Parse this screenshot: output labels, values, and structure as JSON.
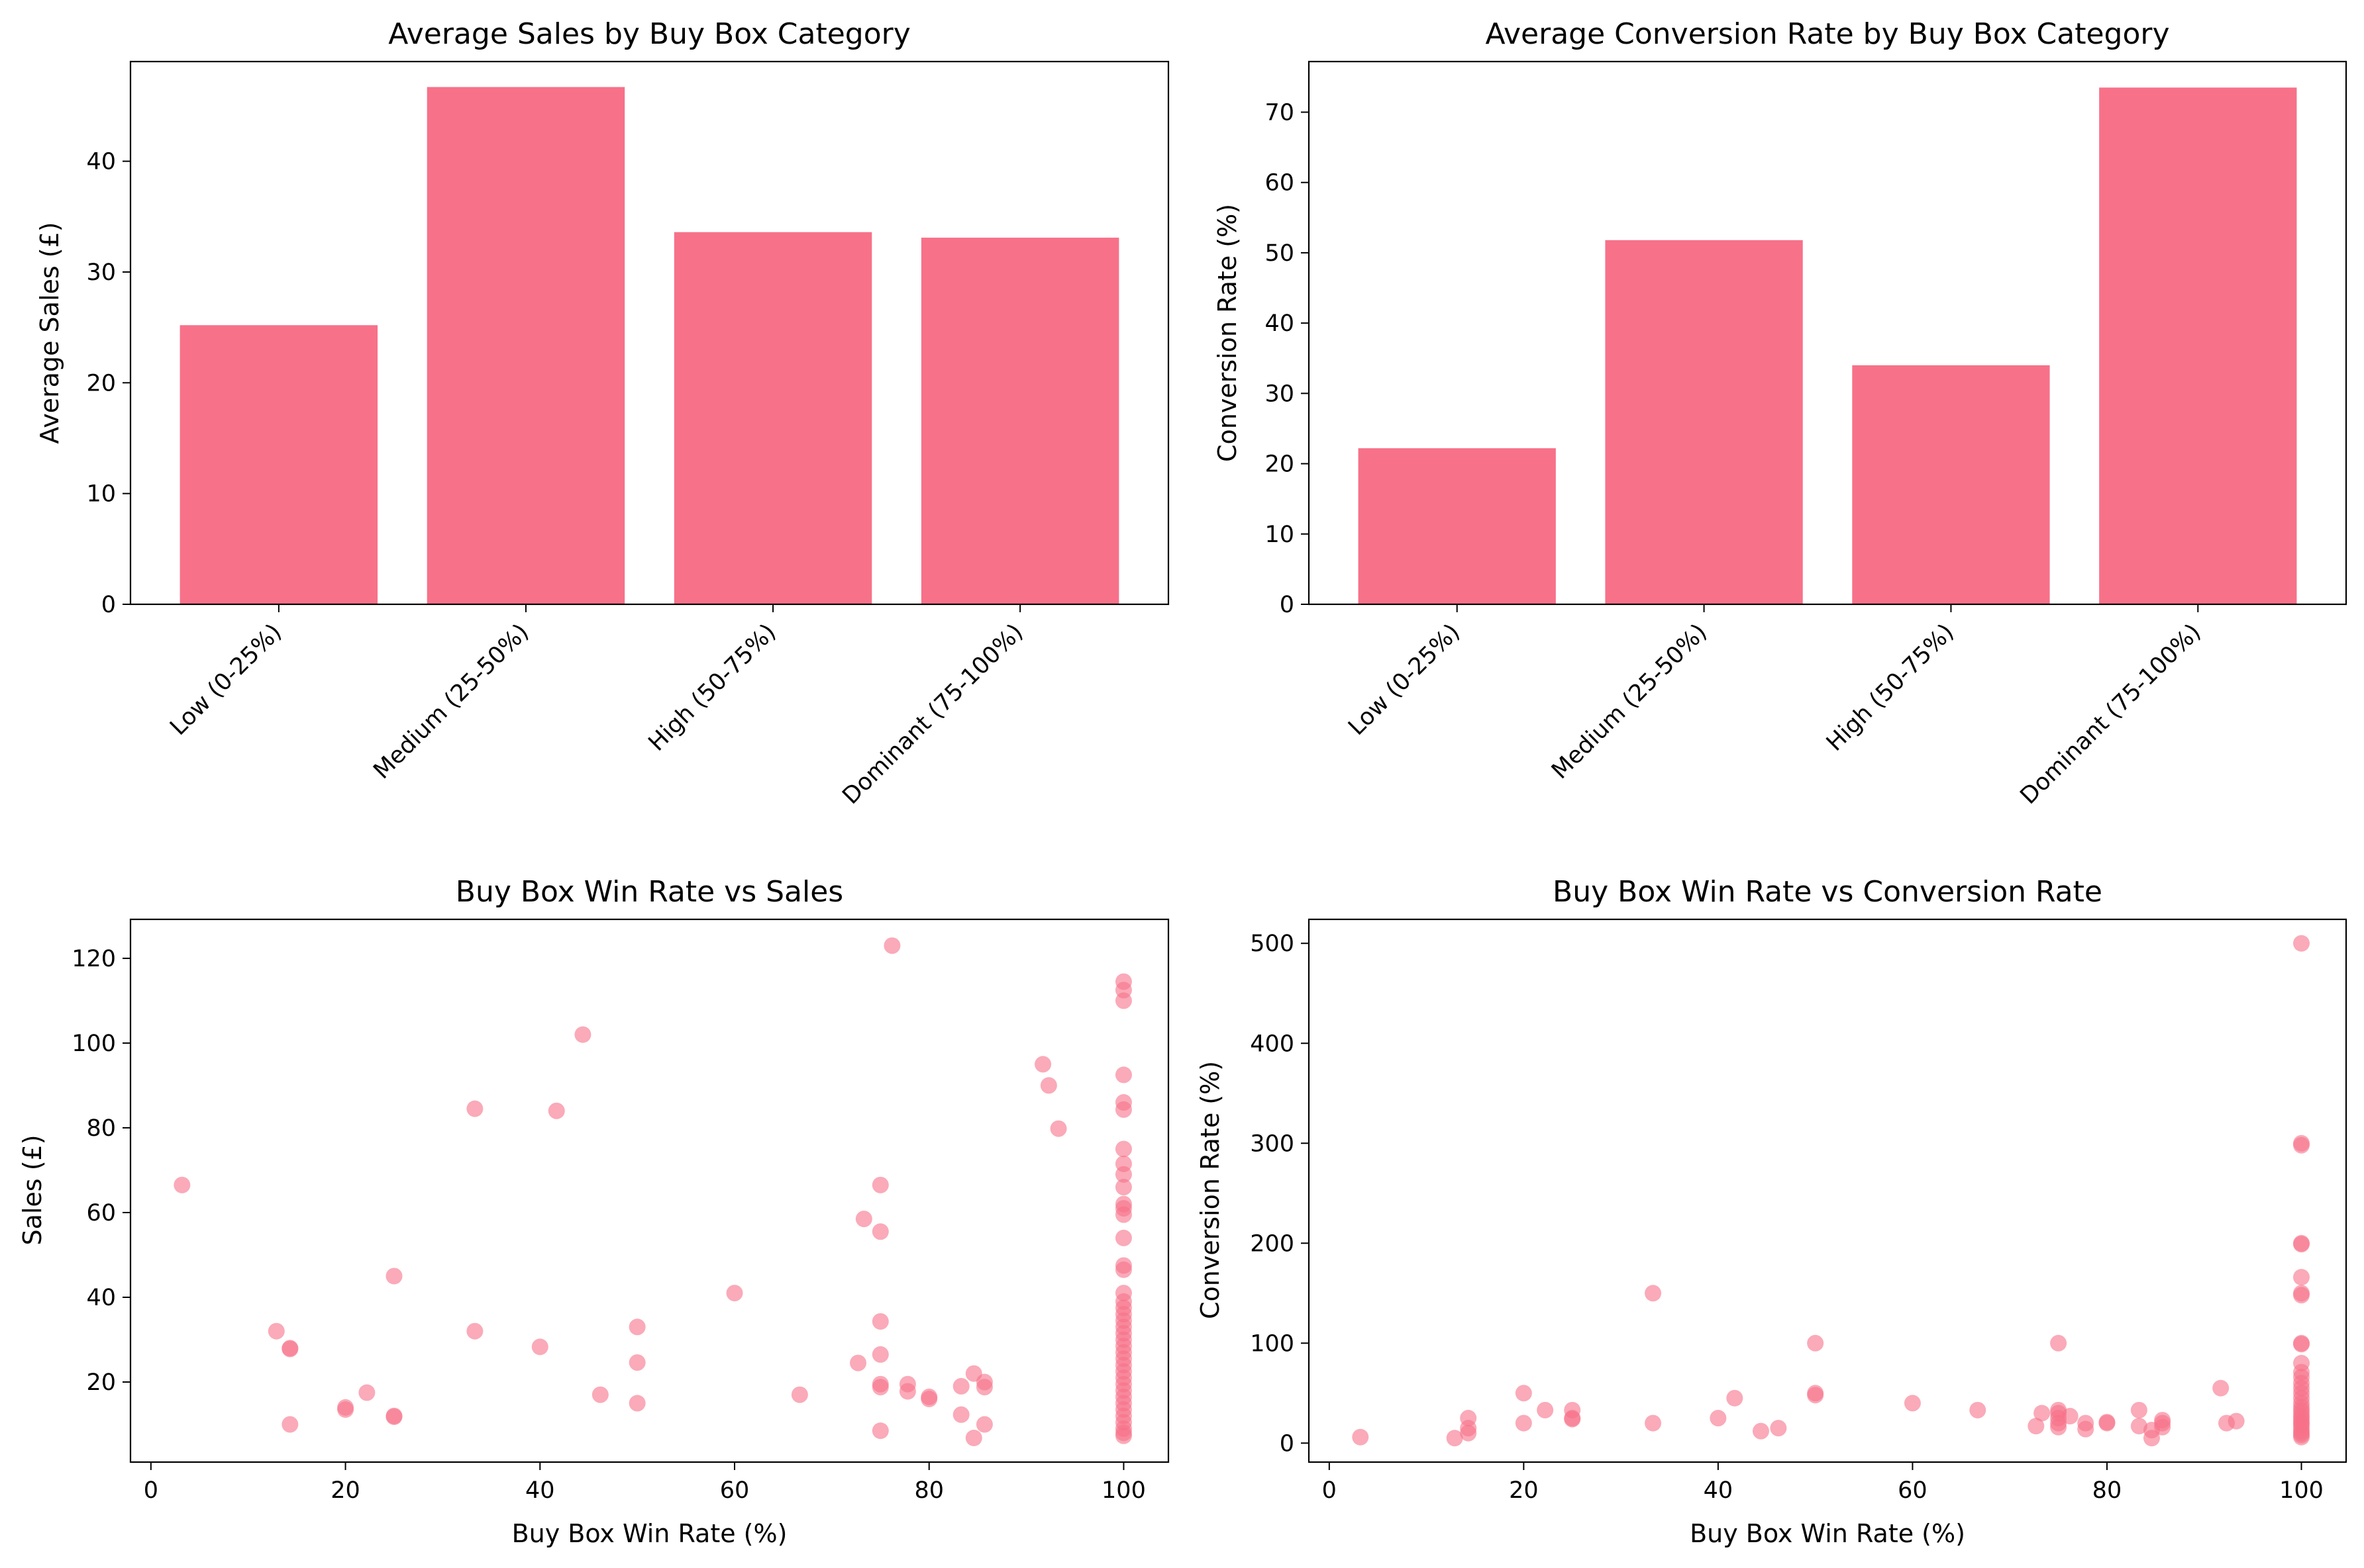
{
  "colors": {
    "bar": "#f77189",
    "point": "#f77189",
    "axis": "#000000"
  },
  "chart_data": [
    {
      "type": "bar",
      "title": "Average Sales by Buy Box Category",
      "xlabel": "",
      "ylabel": "Average Sales (£)",
      "categories": [
        "Low (0-25%)",
        "Medium (25-50%)",
        "High (50-75%)",
        "Dominant (75-100%)"
      ],
      "values": [
        25.2,
        46.7,
        33.6,
        33.1
      ],
      "ylim": [
        0,
        49
      ],
      "yticks": [
        0,
        10,
        20,
        30,
        40
      ],
      "grid": false
    },
    {
      "type": "bar",
      "title": "Average Conversion Rate by Buy Box Category",
      "xlabel": "",
      "ylabel": "Conversion Rate (%)",
      "categories": [
        "Low (0-25%)",
        "Medium (25-50%)",
        "High (50-75%)",
        "Dominant (75-100%)"
      ],
      "values": [
        22.2,
        51.8,
        34.0,
        73.5
      ],
      "ylim": [
        0,
        77.2
      ],
      "yticks": [
        0,
        10,
        20,
        30,
        40,
        50,
        60,
        70
      ],
      "grid": false
    },
    {
      "type": "scatter",
      "title": "Buy Box Win Rate vs Sales",
      "xlabel": "Buy Box Win Rate (%)",
      "ylabel": "Sales (£)",
      "xlim": [
        -2.1,
        104.6
      ],
      "ylim": [
        1.1,
        129.2
      ],
      "xticks": [
        0,
        20,
        40,
        60,
        80,
        100
      ],
      "yticks": [
        20,
        40,
        60,
        80,
        100,
        120
      ],
      "grid": false,
      "points": [
        [
          3.2,
          66.5
        ],
        [
          12.9,
          32.0
        ],
        [
          14.3,
          28.0
        ],
        [
          14.3,
          27.8
        ],
        [
          14.3,
          10.0
        ],
        [
          20.0,
          14.0
        ],
        [
          20.0,
          13.5
        ],
        [
          22.2,
          17.5
        ],
        [
          25.0,
          45.0
        ],
        [
          25.0,
          12.0
        ],
        [
          25.0,
          11.8
        ],
        [
          33.3,
          84.5
        ],
        [
          33.3,
          32.0
        ],
        [
          40.0,
          28.3
        ],
        [
          41.7,
          84.0
        ],
        [
          44.4,
          102.0
        ],
        [
          46.2,
          17.0
        ],
        [
          50.0,
          33.0
        ],
        [
          50.0,
          24.6
        ],
        [
          50.0,
          15.0
        ],
        [
          60.0,
          41.0
        ],
        [
          66.7,
          17.0
        ],
        [
          72.7,
          24.5
        ],
        [
          73.3,
          58.5
        ],
        [
          75.0,
          66.5
        ],
        [
          75.0,
          55.5
        ],
        [
          75.0,
          34.3
        ],
        [
          75.0,
          26.5
        ],
        [
          75.0,
          19.5
        ],
        [
          75.0,
          18.8
        ],
        [
          75.0,
          8.5
        ],
        [
          76.2,
          123.0
        ],
        [
          77.8,
          19.5
        ],
        [
          77.8,
          17.8
        ],
        [
          80.0,
          16.5
        ],
        [
          80.0,
          16.0
        ],
        [
          83.3,
          19.0
        ],
        [
          83.3,
          12.3
        ],
        [
          84.6,
          22.0
        ],
        [
          84.6,
          6.8
        ],
        [
          85.7,
          20.0
        ],
        [
          85.7,
          18.8
        ],
        [
          85.7,
          10.0
        ],
        [
          91.7,
          95.0
        ],
        [
          92.3,
          90.0
        ],
        [
          93.3,
          79.8
        ],
        [
          100,
          114.5
        ],
        [
          100,
          112.5
        ],
        [
          100,
          110.0
        ],
        [
          100,
          92.5
        ],
        [
          100,
          86.0
        ],
        [
          100,
          84.3
        ],
        [
          100,
          75.0
        ],
        [
          100,
          71.5
        ],
        [
          100,
          69.0
        ],
        [
          100,
          66.0
        ],
        [
          100,
          62.0
        ],
        [
          100,
          61.0
        ],
        [
          100,
          59.5
        ],
        [
          100,
          54.0
        ],
        [
          100,
          47.5
        ],
        [
          100,
          46.5
        ],
        [
          100,
          41.0
        ],
        [
          100,
          39.0
        ],
        [
          100,
          37.5
        ],
        [
          100,
          36.0
        ],
        [
          100,
          34.5
        ],
        [
          100,
          33.0
        ],
        [
          100,
          31.5
        ],
        [
          100,
          30.0
        ],
        [
          100,
          28.5
        ],
        [
          100,
          27.0
        ],
        [
          100,
          25.5
        ],
        [
          100,
          24.0
        ],
        [
          100,
          22.5
        ],
        [
          100,
          21.0
        ],
        [
          100,
          19.5
        ],
        [
          100,
          18.0
        ],
        [
          100,
          16.5
        ],
        [
          100,
          15.0
        ],
        [
          100,
          13.5
        ],
        [
          100,
          12.0
        ],
        [
          100,
          10.5
        ],
        [
          100,
          9.0
        ],
        [
          100,
          8.0
        ],
        [
          100,
          7.3
        ]
      ]
    },
    {
      "type": "scatter",
      "title": "Buy Box Win Rate vs Conversion Rate",
      "xlabel": "Buy Box Win Rate (%)",
      "ylabel": "Conversion Rate (%)",
      "xlim": [
        -2.1,
        104.6
      ],
      "ylim": [
        -19,
        524
      ],
      "xticks": [
        0,
        20,
        40,
        60,
        80,
        100
      ],
      "yticks": [
        0,
        100,
        200,
        300,
        400,
        500
      ],
      "grid": false,
      "points": [
        [
          3.2,
          6.0
        ],
        [
          12.9,
          5.0
        ],
        [
          14.3,
          25.0
        ],
        [
          14.3,
          15.0
        ],
        [
          14.3,
          10.0
        ],
        [
          20.0,
          50.0
        ],
        [
          20.0,
          20.0
        ],
        [
          22.2,
          33.0
        ],
        [
          25.0,
          33.0
        ],
        [
          25.0,
          25.0
        ],
        [
          25.0,
          24.0
        ],
        [
          33.3,
          150.0
        ],
        [
          33.3,
          20.0
        ],
        [
          40.0,
          25.0
        ],
        [
          41.7,
          45.0
        ],
        [
          44.4,
          12.0
        ],
        [
          46.2,
          15.0
        ],
        [
          50.0,
          100.0
        ],
        [
          50.0,
          50.0
        ],
        [
          50.0,
          48.0
        ],
        [
          60.0,
          40.0
        ],
        [
          66.7,
          33.0
        ],
        [
          72.7,
          17.0
        ],
        [
          73.3,
          30.0
        ],
        [
          75.0,
          100.0
        ],
        [
          75.0,
          33.0
        ],
        [
          75.0,
          30.0
        ],
        [
          75.0,
          25.0
        ],
        [
          75.0,
          20.0
        ],
        [
          75.0,
          16.0
        ],
        [
          76.2,
          27.0
        ],
        [
          77.8,
          20.0
        ],
        [
          77.8,
          14.0
        ],
        [
          80.0,
          20.0
        ],
        [
          80.0,
          21.0
        ],
        [
          83.3,
          33.0
        ],
        [
          83.3,
          17.0
        ],
        [
          84.6,
          5.0
        ],
        [
          84.6,
          13.0
        ],
        [
          85.7,
          23.0
        ],
        [
          85.7,
          20.0
        ],
        [
          85.7,
          16.0
        ],
        [
          91.7,
          55.0
        ],
        [
          92.3,
          20.0
        ],
        [
          93.3,
          22.0
        ],
        [
          100,
          500.0
        ],
        [
          100,
          300.0
        ],
        [
          100,
          298.0
        ],
        [
          100,
          200.0
        ],
        [
          100,
          199.0
        ],
        [
          100,
          166.0
        ],
        [
          100,
          150.0
        ],
        [
          100,
          148.0
        ],
        [
          100,
          100.0
        ],
        [
          100,
          99.0
        ],
        [
          100,
          80.0
        ],
        [
          100,
          71.0
        ],
        [
          100,
          66.0
        ],
        [
          100,
          60.0
        ],
        [
          100,
          55.0
        ],
        [
          100,
          50.0
        ],
        [
          100,
          45.0
        ],
        [
          100,
          40.0
        ],
        [
          100,
          36.0
        ],
        [
          100,
          33.0
        ],
        [
          100,
          30.0
        ],
        [
          100,
          27.0
        ],
        [
          100,
          25.0
        ],
        [
          100,
          22.0
        ],
        [
          100,
          20.0
        ],
        [
          100,
          18.0
        ],
        [
          100,
          15.0
        ],
        [
          100,
          12.0
        ],
        [
          100,
          10.0
        ],
        [
          100,
          8.0
        ],
        [
          100,
          6.0
        ]
      ]
    }
  ]
}
